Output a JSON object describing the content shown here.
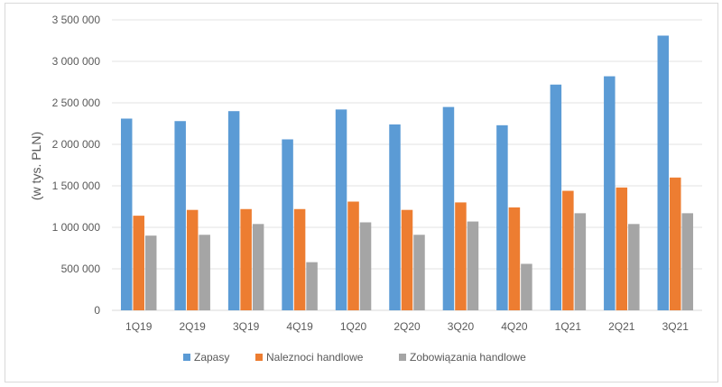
{
  "chart_data": {
    "type": "bar",
    "categories": [
      "1Q19",
      "2Q19",
      "3Q19",
      "4Q19",
      "1Q20",
      "2Q20",
      "3Q20",
      "4Q20",
      "1Q21",
      "2Q21",
      "3Q21"
    ],
    "series": [
      {
        "name": "Zapasy",
        "color": "#5b9bd5",
        "values": [
          2310000,
          2280000,
          2400000,
          2060000,
          2420000,
          2240000,
          2450000,
          2230000,
          2720000,
          2820000,
          3310000
        ]
      },
      {
        "name": "Naleznoci handlowe",
        "color": "#ed7d31",
        "values": [
          1140000,
          1210000,
          1220000,
          1220000,
          1310000,
          1210000,
          1300000,
          1240000,
          1440000,
          1480000,
          1600000
        ]
      },
      {
        "name": "Zobowiązania handlowe",
        "color": "#a5a5a5",
        "values": [
          900000,
          910000,
          1040000,
          580000,
          1060000,
          910000,
          1070000,
          560000,
          1170000,
          1040000,
          1170000
        ]
      }
    ],
    "yticks": [
      "0",
      "500 000",
      "1 000 000",
      "1 500 000",
      "2 000 000",
      "2 500 000",
      "3 000 000",
      "3 500 000"
    ],
    "ylabel": "(w tys. PLN)",
    "ylim": [
      0,
      3500000
    ],
    "grid": true,
    "legend": "bottom"
  }
}
